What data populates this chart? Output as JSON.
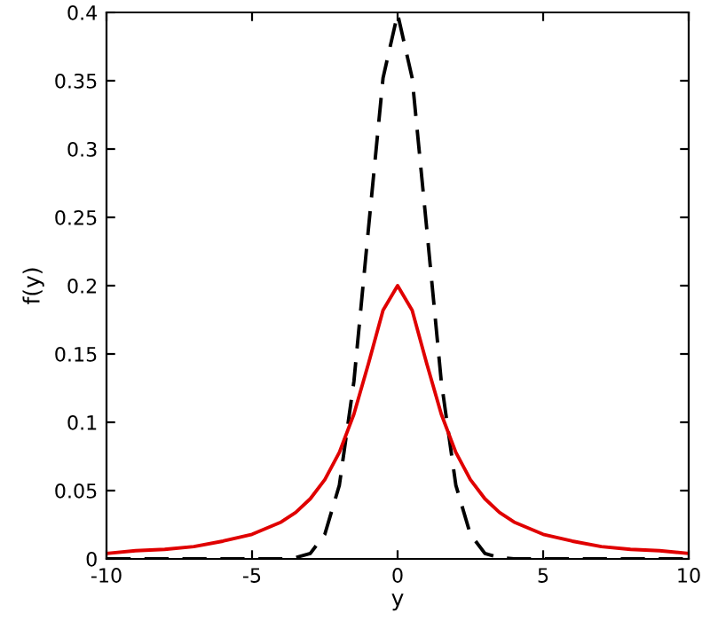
{
  "chart_data": {
    "type": "line",
    "xlabel": "y",
    "ylabel": "f(y)",
    "xlim": [
      -10,
      10
    ],
    "ylim": [
      0,
      0.4
    ],
    "xticks": [
      -10,
      -5,
      0,
      5,
      10
    ],
    "yticks": [
      0,
      0.05,
      0.1,
      0.15,
      0.2,
      0.25,
      0.3,
      0.35,
      0.4
    ],
    "grid": false,
    "legend": false,
    "series": [
      {
        "color": "#000000",
        "line_style": "dashed",
        "x": [
          -10,
          -6,
          -4,
          -3.5,
          -3,
          -2.5,
          -2,
          -1.5,
          -1,
          -0.5,
          0,
          0.5,
          1,
          1.5,
          2,
          2.5,
          3,
          3.5,
          4,
          6,
          10
        ],
        "values": [
          0,
          0,
          0,
          0.001,
          0.004,
          0.018,
          0.054,
          0.13,
          0.242,
          0.352,
          0.399,
          0.352,
          0.242,
          0.13,
          0.054,
          0.018,
          0.004,
          0.001,
          0,
          0,
          0
        ]
      },
      {
        "color": "#e00000",
        "line_style": "solid",
        "x": [
          -10,
          -9,
          -8,
          -7,
          -6,
          -5,
          -4,
          -3.5,
          -3,
          -2.5,
          -2,
          -1.5,
          -1,
          -0.5,
          0,
          0.5,
          1,
          1.5,
          2,
          2.5,
          3,
          3.5,
          4,
          5,
          6,
          7,
          8,
          9,
          10
        ],
        "values": [
          0.004,
          0.006,
          0.007,
          0.009,
          0.013,
          0.018,
          0.027,
          0.034,
          0.044,
          0.058,
          0.078,
          0.106,
          0.143,
          0.182,
          0.2,
          0.182,
          0.143,
          0.106,
          0.078,
          0.058,
          0.044,
          0.034,
          0.027,
          0.018,
          0.013,
          0.009,
          0.007,
          0.006,
          0.004
        ]
      }
    ]
  }
}
